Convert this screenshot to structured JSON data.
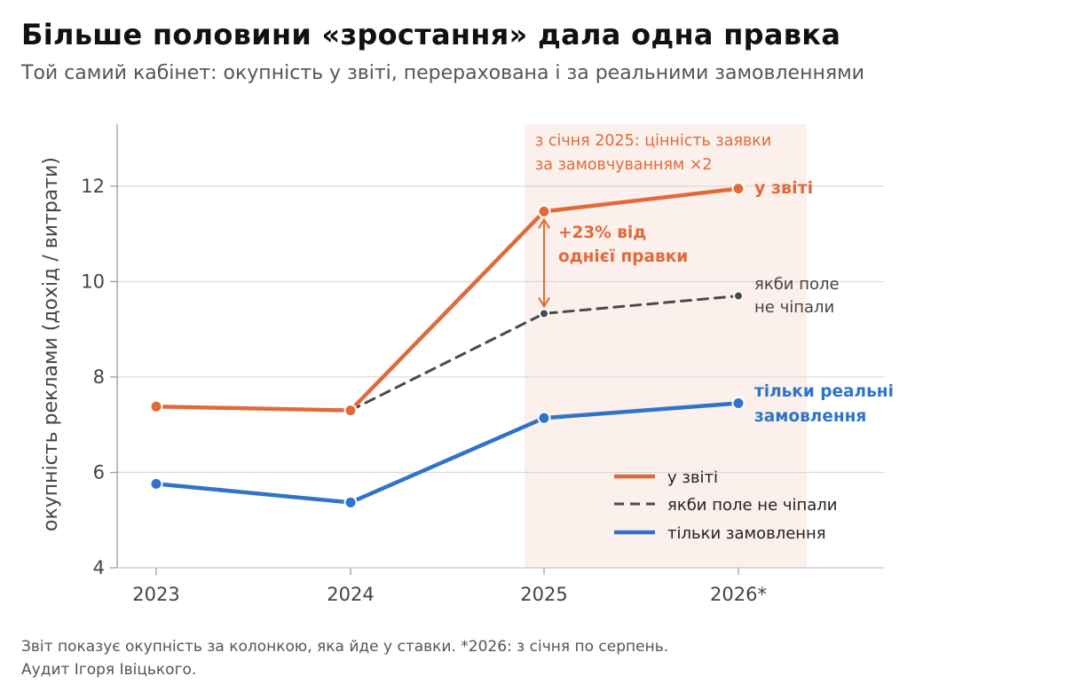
{
  "title": "Більше половини «зростання» дала одна правка",
  "subtitle": "Той самий кабінет: окупність у звіті, перерахована і за реальними замовленнями",
  "footnote": [
    "Звіт показує окупність за колонкою, яка йде у ставки. *2026: з січня по серпень.",
    "Аудит Ігоря Івіцького."
  ],
  "chart_data": {
    "type": "line",
    "categories": [
      "2023",
      "2024",
      "2025",
      "2026*"
    ],
    "ylabel": "окупність реклами (дохід / витрати)",
    "ylim": [
      4,
      13.3
    ],
    "yticks": [
      "4",
      "6",
      "8",
      "10",
      "12"
    ],
    "grid": true,
    "legend_position": "bottom-right",
    "series": [
      {
        "key": "report",
        "name": "у звіті",
        "color": "#e06a3a",
        "values": [
          7.38,
          7.3,
          11.47,
          11.95
        ],
        "end_label": [
          "у звіті"
        ]
      },
      {
        "key": "counterfactual",
        "name": "якби поле не чіпали",
        "color": "#4a4a4a",
        "dashed": true,
        "values": [
          null,
          7.3,
          9.33,
          9.7
        ],
        "end_label": [
          "якби поле",
          "не чіпали"
        ]
      },
      {
        "key": "orders",
        "name": "тільки замовлення",
        "color": "#2f74c8",
        "values": [
          5.76,
          5.37,
          7.14,
          7.45
        ],
        "end_label": [
          "тільки реальні",
          "замовлення"
        ]
      }
    ],
    "shaded_region": {
      "from": "2025",
      "to": "2026*",
      "color": "#fbf0ec",
      "label": [
        "з січня 2025: цінність заявки",
        "за замовчуванням ×2"
      ]
    },
    "annotation": {
      "category": "2025",
      "from_value": 11.47,
      "to_value": 9.33,
      "label": [
        "+23% від",
        "однієї правки"
      ]
    }
  }
}
